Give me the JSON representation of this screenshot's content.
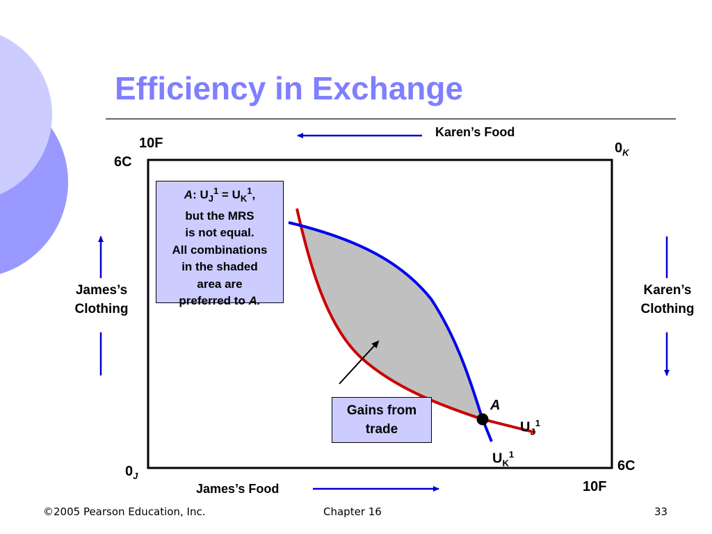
{
  "title": "Efficiency in Exchange",
  "axes": {
    "karens_food": "Karen’s Food",
    "james_food": "James’s Food",
    "james_clothing": [
      "James’s",
      "Clothing"
    ],
    "karens_clothing": [
      "Karen’s",
      "Clothing"
    ]
  },
  "corners": {
    "top_food": "10F",
    "top_clothing": "6C",
    "origin_k": {
      "main": "0",
      "sub": "K"
    },
    "origin_j": {
      "main": "0",
      "sub": "J"
    },
    "bottom_clothing": "6C",
    "bottom_food": "10F"
  },
  "note": {
    "label": "A",
    "text1": ": U",
    "sub1": "J",
    "sup1": "1",
    "text2": " = U",
    "sub2": "K",
    "sup2": "1",
    "text3": ",",
    "lines": [
      "but the MRS",
      "is not equal.",
      "All combinations",
      "in the shaded",
      "area are"
    ],
    "last": "preferred to ",
    "last_label": "A."
  },
  "gains": [
    "Gains from",
    "trade"
  ],
  "point": "A",
  "curve_j": {
    "main": "U",
    "sub": "J",
    "sup": "1"
  },
  "curve_k": {
    "main": "U",
    "sub": "K",
    "sup": "1"
  },
  "footer": {
    "copyright": "©2005 Pearson Education, Inc.",
    "chapter": "Chapter 16",
    "page": "33"
  }
}
